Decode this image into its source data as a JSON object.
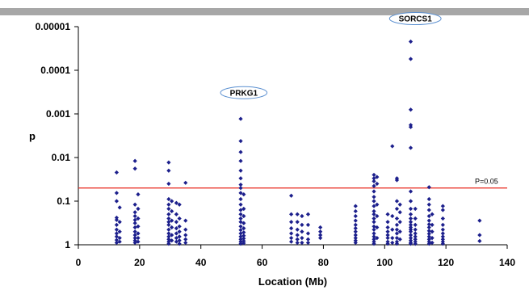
{
  "chart_data": {
    "type": "scatter",
    "title": "",
    "xlabel": "Location (Mb)",
    "ylabel": "p",
    "xlim": [
      0,
      140
    ],
    "ylim": [
      1,
      1e-05
    ],
    "y_scale": "log",
    "y_reversed": true,
    "x_ticks": [
      0,
      20,
      40,
      60,
      80,
      100,
      120,
      140
    ],
    "x_tick_labels": [
      "0",
      "20",
      "40",
      "60",
      "80",
      "100",
      "120",
      "140"
    ],
    "y_ticks": [
      1e-05,
      0.0001,
      0.001,
      0.01,
      0.1,
      1
    ],
    "y_tick_labels": [
      "0.00001",
      "0.0001",
      "0.001",
      "0.01",
      "0.1",
      "1"
    ],
    "grid": false,
    "marker_color": "#1c1f8c",
    "reference_line": {
      "y": 0.05,
      "label": "P=0.05",
      "color": "#e8261c"
    },
    "annotations": [
      {
        "text": "PRKG1",
        "x": 54,
        "y": 0.0008
      },
      {
        "text": "SORCS1",
        "x": 110,
        "y": 1.6e-05
      }
    ],
    "points": [
      [
        12.5,
        0.022
      ],
      [
        12.5,
        0.065
      ],
      [
        12.5,
        0.1
      ],
      [
        12.5,
        0.24
      ],
      [
        12.5,
        0.27
      ],
      [
        12.5,
        0.35
      ],
      [
        12.5,
        0.45
      ],
      [
        12.5,
        0.55
      ],
      [
        12.5,
        0.65
      ],
      [
        12.5,
        0.78
      ],
      [
        12.5,
        0.9
      ],
      [
        13.5,
        0.14
      ],
      [
        13.5,
        0.3
      ],
      [
        13.5,
        0.5
      ],
      [
        13.5,
        0.7
      ],
      [
        13.5,
        0.85
      ],
      [
        18.5,
        0.012
      ],
      [
        18.5,
        0.018
      ],
      [
        18.5,
        0.12
      ],
      [
        18.5,
        0.18
      ],
      [
        18.5,
        0.22
      ],
      [
        18.5,
        0.27
      ],
      [
        18.5,
        0.32
      ],
      [
        18.5,
        0.4
      ],
      [
        18.5,
        0.5
      ],
      [
        18.5,
        0.6
      ],
      [
        18.5,
        0.7
      ],
      [
        18.5,
        0.8
      ],
      [
        18.5,
        0.9
      ],
      [
        19.5,
        0.07
      ],
      [
        19.5,
        0.15
      ],
      [
        19.5,
        0.25
      ],
      [
        19.5,
        0.38
      ],
      [
        19.5,
        0.55
      ],
      [
        19.5,
        0.7
      ],
      [
        19.5,
        0.85
      ],
      [
        29.5,
        0.013
      ],
      [
        29.5,
        0.02
      ],
      [
        29.5,
        0.04
      ],
      [
        29.5,
        0.09
      ],
      [
        29.5,
        0.12
      ],
      [
        29.5,
        0.15
      ],
      [
        29.5,
        0.2
      ],
      [
        29.5,
        0.25
      ],
      [
        29.5,
        0.3
      ],
      [
        29.5,
        0.35
      ],
      [
        29.5,
        0.45
      ],
      [
        29.5,
        0.55
      ],
      [
        29.5,
        0.65
      ],
      [
        29.5,
        0.75
      ],
      [
        29.5,
        0.85
      ],
      [
        29.5,
        0.95
      ],
      [
        30.5,
        0.1
      ],
      [
        30.5,
        0.17
      ],
      [
        30.5,
        0.28
      ],
      [
        30.5,
        0.4
      ],
      [
        30.5,
        0.6
      ],
      [
        30.5,
        0.8
      ],
      [
        32,
        0.11
      ],
      [
        32,
        0.2
      ],
      [
        32,
        0.3
      ],
      [
        32,
        0.42
      ],
      [
        32,
        0.55
      ],
      [
        32,
        0.7
      ],
      [
        32,
        0.85
      ],
      [
        33,
        0.12
      ],
      [
        33,
        0.25
      ],
      [
        33,
        0.38
      ],
      [
        33,
        0.5
      ],
      [
        33,
        0.65
      ],
      [
        33,
        0.8
      ],
      [
        33,
        0.95
      ],
      [
        35,
        0.038
      ],
      [
        35,
        0.28
      ],
      [
        35,
        0.45
      ],
      [
        35,
        0.6
      ],
      [
        35,
        0.75
      ],
      [
        35,
        0.9
      ],
      [
        53,
        0.0013
      ],
      [
        53,
        0.0042
      ],
      [
        53,
        0.0075
      ],
      [
        53,
        0.012
      ],
      [
        53,
        0.02
      ],
      [
        53,
        0.03
      ],
      [
        53,
        0.042
      ],
      [
        53,
        0.05
      ],
      [
        53,
        0.065
      ],
      [
        53,
        0.09
      ],
      [
        53,
        0.12
      ],
      [
        53,
        0.16
      ],
      [
        53,
        0.2
      ],
      [
        53,
        0.25
      ],
      [
        53,
        0.3
      ],
      [
        53,
        0.38
      ],
      [
        53,
        0.46
      ],
      [
        53,
        0.55
      ],
      [
        53,
        0.65
      ],
      [
        53,
        0.75
      ],
      [
        53,
        0.85
      ],
      [
        53,
        0.95
      ],
      [
        54,
        0.07
      ],
      [
        54,
        0.15
      ],
      [
        54,
        0.22
      ],
      [
        54,
        0.32
      ],
      [
        54,
        0.42
      ],
      [
        54,
        0.52
      ],
      [
        54,
        0.62
      ],
      [
        54,
        0.72
      ],
      [
        54,
        0.82
      ],
      [
        54,
        0.92
      ],
      [
        69.5,
        0.075
      ],
      [
        69.5,
        0.2
      ],
      [
        69.5,
        0.3
      ],
      [
        69.5,
        0.42
      ],
      [
        69.5,
        0.55
      ],
      [
        69.5,
        0.7
      ],
      [
        69.5,
        0.85
      ],
      [
        71.5,
        0.2
      ],
      [
        71.5,
        0.3
      ],
      [
        71.5,
        0.45
      ],
      [
        71.5,
        0.6
      ],
      [
        71.5,
        0.75
      ],
      [
        71.5,
        0.9
      ],
      [
        73,
        0.22
      ],
      [
        73,
        0.35
      ],
      [
        73,
        0.5
      ],
      [
        73,
        0.7
      ],
      [
        73,
        0.9
      ],
      [
        75,
        0.2
      ],
      [
        75,
        0.35
      ],
      [
        75,
        0.55
      ],
      [
        75,
        0.75
      ],
      [
        75,
        0.9
      ],
      [
        79,
        0.4
      ],
      [
        79,
        0.5
      ],
      [
        79,
        0.6
      ],
      [
        79,
        0.7
      ],
      [
        90.5,
        0.13
      ],
      [
        90.5,
        0.17
      ],
      [
        90.5,
        0.22
      ],
      [
        90.5,
        0.28
      ],
      [
        90.5,
        0.35
      ],
      [
        90.5,
        0.42
      ],
      [
        90.5,
        0.5
      ],
      [
        90.5,
        0.6
      ],
      [
        90.5,
        0.7
      ],
      [
        90.5,
        0.8
      ],
      [
        90.5,
        0.9
      ],
      [
        96.5,
        0.025
      ],
      [
        96.5,
        0.03
      ],
      [
        96.5,
        0.035
      ],
      [
        96.5,
        0.045
      ],
      [
        96.5,
        0.06
      ],
      [
        96.5,
        0.08
      ],
      [
        96.5,
        0.1
      ],
      [
        96.5,
        0.13
      ],
      [
        96.5,
        0.17
      ],
      [
        96.5,
        0.2
      ],
      [
        96.5,
        0.25
      ],
      [
        96.5,
        0.3
      ],
      [
        96.5,
        0.38
      ],
      [
        96.5,
        0.45
      ],
      [
        96.5,
        0.55
      ],
      [
        96.5,
        0.65
      ],
      [
        96.5,
        0.75
      ],
      [
        96.5,
        0.85
      ],
      [
        96.5,
        0.95
      ],
      [
        97.5,
        0.028
      ],
      [
        97.5,
        0.04
      ],
      [
        97.5,
        0.12
      ],
      [
        97.5,
        0.22
      ],
      [
        97.5,
        0.4
      ],
      [
        97.5,
        0.7
      ],
      [
        101,
        0.2
      ],
      [
        101,
        0.3
      ],
      [
        101,
        0.4
      ],
      [
        101,
        0.5
      ],
      [
        101,
        0.6
      ],
      [
        101,
        0.7
      ],
      [
        101,
        0.85
      ],
      [
        101,
        0.95
      ],
      [
        102.5,
        0.0055
      ],
      [
        102.5,
        0.22
      ],
      [
        102.5,
        0.45
      ],
      [
        102.5,
        0.7
      ],
      [
        102.5,
        0.9
      ],
      [
        104,
        0.03
      ],
      [
        104,
        0.033
      ],
      [
        104,
        0.1
      ],
      [
        104,
        0.15
      ],
      [
        104,
        0.25
      ],
      [
        104,
        0.35
      ],
      [
        104,
        0.45
      ],
      [
        104,
        0.55
      ],
      [
        104,
        0.7
      ],
      [
        104,
        0.85
      ],
      [
        104,
        0.95
      ],
      [
        105,
        0.12
      ],
      [
        105,
        0.18
      ],
      [
        105,
        0.3
      ],
      [
        105,
        0.5
      ],
      [
        105,
        0.75
      ],
      [
        108.5,
        2.2e-05
      ],
      [
        108.5,
        5.5e-05
      ],
      [
        108.5,
        0.0008
      ],
      [
        108.5,
        0.0018
      ],
      [
        108.5,
        0.002
      ],
      [
        108.5,
        0.006
      ],
      [
        108.5,
        0.06
      ],
      [
        108.5,
        0.1
      ],
      [
        108.5,
        0.15
      ],
      [
        108.5,
        0.2
      ],
      [
        108.5,
        0.25
      ],
      [
        108.5,
        0.3
      ],
      [
        108.5,
        0.35
      ],
      [
        108.5,
        0.4
      ],
      [
        108.5,
        0.45
      ],
      [
        108.5,
        0.5
      ],
      [
        108.5,
        0.6
      ],
      [
        108.5,
        0.7
      ],
      [
        108.5,
        0.8
      ],
      [
        108.5,
        0.9
      ],
      [
        108.5,
        0.95
      ],
      [
        110,
        0.15
      ],
      [
        110,
        0.25
      ],
      [
        110,
        0.35
      ],
      [
        110,
        0.45
      ],
      [
        110,
        0.55
      ],
      [
        110,
        0.65
      ],
      [
        110,
        0.75
      ],
      [
        110,
        0.85
      ],
      [
        110,
        0.95
      ],
      [
        114.5,
        0.048
      ],
      [
        114.5,
        0.09
      ],
      [
        114.5,
        0.12
      ],
      [
        114.5,
        0.16
      ],
      [
        114.5,
        0.22
      ],
      [
        114.5,
        0.28
      ],
      [
        114.5,
        0.34
      ],
      [
        114.5,
        0.4
      ],
      [
        114.5,
        0.48
      ],
      [
        114.5,
        0.56
      ],
      [
        114.5,
        0.65
      ],
      [
        114.5,
        0.75
      ],
      [
        114.5,
        0.85
      ],
      [
        114.5,
        0.95
      ],
      [
        115.5,
        0.2
      ],
      [
        115.5,
        0.35
      ],
      [
        115.5,
        0.5
      ],
      [
        115.5,
        0.7
      ],
      [
        115.5,
        0.9
      ],
      [
        119,
        0.13
      ],
      [
        119,
        0.16
      ],
      [
        119,
        0.25
      ],
      [
        119,
        0.35
      ],
      [
        119,
        0.45
      ],
      [
        119,
        0.55
      ],
      [
        119,
        0.65
      ],
      [
        119,
        0.75
      ],
      [
        119,
        0.85
      ],
      [
        119,
        0.95
      ],
      [
        131,
        0.28
      ],
      [
        131,
        0.6
      ],
      [
        131,
        0.82
      ]
    ]
  }
}
